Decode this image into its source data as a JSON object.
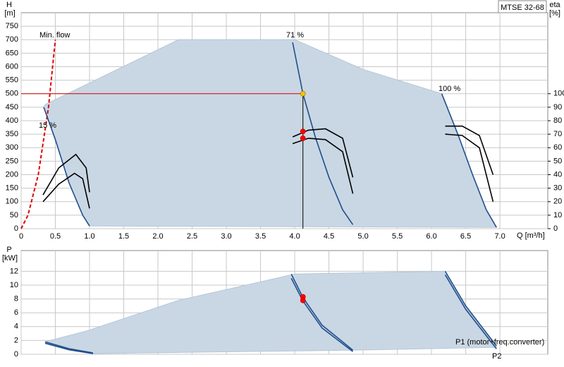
{
  "chart_data": [
    {
      "type": "line",
      "pump": "MTSE 32-68",
      "y_label": "H",
      "y_unit": "[m]",
      "y2_label": "eta",
      "y2_unit": "[%]",
      "x_label": "Q [m³/h]",
      "grid": true,
      "xlim": [
        0,
        7.7
      ],
      "xticks": [
        0,
        0.5,
        {
          "value": 1,
          "label": "1.0"
        },
        1.5,
        {
          "value": 2,
          "label": "2.0"
        },
        2.5,
        {
          "value": 3,
          "label": "3.0"
        },
        3.5,
        {
          "value": 4,
          "label": "4.0"
        },
        4.5,
        {
          "value": 5,
          "label": "5.0"
        },
        5.5,
        {
          "value": 6,
          "label": "6.0"
        },
        6.5,
        {
          "value": 7,
          "label": "7.0"
        }
      ],
      "ylim": [
        0,
        800
      ],
      "yticks": [
        0,
        50,
        100,
        150,
        200,
        250,
        300,
        350,
        400,
        450,
        500,
        550,
        600,
        650,
        700,
        750
      ],
      "y2lim": [
        0,
        160
      ],
      "y2ticks": [
        0,
        10,
        20,
        30,
        40,
        50,
        60,
        70,
        80,
        90,
        100
      ],
      "series": [
        {
          "style": "area",
          "color": "#c9d7e4",
          "x": [
            0.35,
            2.3,
            4.0,
            5.0,
            6.15,
            6.4,
            6.6,
            6.8,
            6.95,
            1.0,
            0.9,
            0.7,
            0.5,
            0.33
          ],
          "values": [
            460,
            700,
            700,
            590,
            500,
            340,
            200,
            70,
            5,
            10,
            50,
            170,
            330,
            450
          ]
        },
        {
          "name": "Min. flow",
          "style": "dash",
          "color": "#e00000",
          "x": [
            0,
            0.1,
            0.25,
            0.4,
            0.5
          ],
          "values": [
            0,
            50,
            200,
            450,
            700
          ]
        },
        {
          "name": "15 %",
          "color": "#1f4e8c",
          "x": [
            0.33,
            0.5,
            0.7,
            0.9,
            1.0
          ],
          "values": [
            450,
            330,
            170,
            50,
            10
          ]
        },
        {
          "name": "71 %",
          "color": "#1f4e8c",
          "x": [
            3.97,
            4.12,
            4.3,
            4.5,
            4.7,
            4.85
          ],
          "values": [
            690,
            500,
            340,
            190,
            70,
            15
          ]
        },
        {
          "name": "100 %",
          "color": "#1f4e8c",
          "x": [
            6.15,
            6.4,
            6.6,
            6.8,
            6.95
          ],
          "values": [
            500,
            340,
            200,
            70,
            5
          ]
        },
        {
          "axis": "y2",
          "color": "#000000",
          "x": [
            0.32,
            0.55,
            0.8,
            0.95,
            1.0,
            null,
            3.97,
            4.2,
            4.45,
            4.7,
            4.85,
            null,
            6.2,
            6.45,
            6.7,
            6.9
          ],
          "values": [
            25,
            45,
            55,
            45,
            27,
            null,
            68,
            73,
            74,
            67,
            38,
            null,
            76,
            76,
            69,
            40
          ]
        },
        {
          "axis": "y2",
          "color": "#000000",
          "x": [
            0.32,
            0.55,
            0.78,
            0.9,
            1.0,
            null,
            3.97,
            4.2,
            4.45,
            4.7,
            4.85,
            null,
            6.2,
            6.45,
            6.7,
            6.9
          ],
          "values": [
            20,
            33,
            41,
            37,
            15,
            null,
            63,
            67,
            66,
            57,
            26,
            null,
            70,
            69,
            60,
            20
          ]
        },
        {
          "style": "duty",
          "color": "#f5c400",
          "x": [
            4.12
          ],
          "values": [
            500
          ]
        },
        {
          "style": "point",
          "axis": "y2",
          "color": "#ff0000",
          "x": [
            4.12,
            4.12
          ],
          "values": [
            72,
            67
          ]
        }
      ]
    },
    {
      "type": "line",
      "y_label": "P",
      "y_unit": "[kW]",
      "grid": true,
      "xlim": [
        0,
        7.7
      ],
      "ylim": [
        0,
        15
      ],
      "yticks": [
        0,
        2,
        4,
        6,
        8,
        10,
        12
      ],
      "series": [
        {
          "style": "area",
          "color": "#c9d7e4",
          "x": [
            0.35,
            1.0,
            2.3,
            4.0,
            6.2,
            6.5,
            6.95,
            4.85,
            1.05
          ],
          "values": [
            1.8,
            3.5,
            7.8,
            11.6,
            12,
            7,
            1,
            0.6,
            0.1
          ]
        },
        {
          "name": "P1 (motor+freq.converter)",
          "color": "#1f4e8c",
          "x": [
            0.35,
            0.7,
            1.05,
            null,
            3.95,
            4.12,
            4.4,
            4.85,
            null,
            6.2,
            6.5,
            6.95
          ],
          "values": [
            1.8,
            0.8,
            0.2,
            null,
            11.6,
            8.2,
            4.2,
            0.6,
            null,
            12,
            7,
            1.2
          ]
        },
        {
          "name": "P2",
          "color": "#1f4e8c",
          "x": [
            0.35,
            0.7,
            1.05,
            null,
            3.95,
            4.12,
            4.4,
            4.85,
            null,
            6.2,
            6.5,
            6.95
          ],
          "values": [
            1.6,
            0.65,
            0.1,
            null,
            11.0,
            7.7,
            3.8,
            0.4,
            null,
            11.5,
            6.5,
            0.8
          ]
        },
        {
          "style": "point",
          "color": "#ff0000",
          "x": [
            4.12,
            4.12
          ],
          "values": [
            8.3,
            7.8
          ]
        }
      ]
    }
  ]
}
